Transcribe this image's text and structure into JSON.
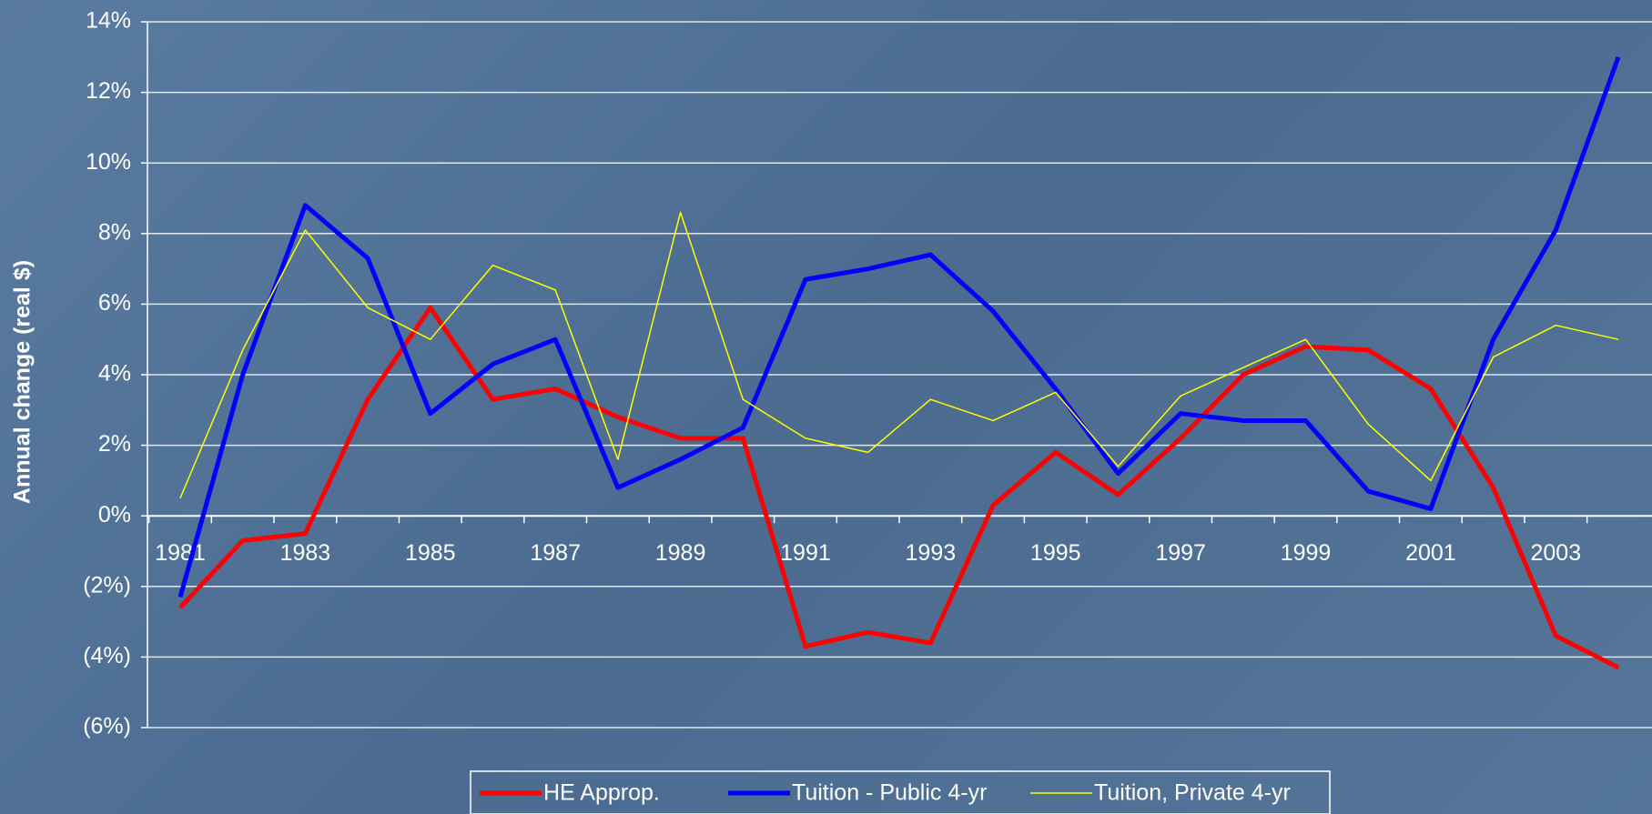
{
  "chart_data": {
    "type": "line",
    "y_label": "Annual change (real $)",
    "categories": [
      "1981",
      null,
      "1983",
      null,
      "1985",
      null,
      "1987",
      null,
      "1989",
      null,
      "1991",
      null,
      "1993",
      null,
      "1995",
      null,
      "1997",
      null,
      "1999",
      null,
      "2001",
      null,
      "2003",
      null
    ],
    "series": [
      {
        "name": "HE Approp.",
        "color": "#ff0000",
        "width": 5,
        "values": [
          -2.6,
          -0.7,
          -0.5,
          3.3,
          5.9,
          3.3,
          3.6,
          2.8,
          2.2,
          2.2,
          -3.7,
          -3.3,
          -3.6,
          0.3,
          1.8,
          0.6,
          2.2,
          4.0,
          4.8,
          4.7,
          3.6,
          0.8,
          -3.4,
          -4.3
        ]
      },
      {
        "name": "Tuition - Public 4-yr",
        "color": "#0000ff",
        "width": 5,
        "values": [
          -2.3,
          4.0,
          8.8,
          7.3,
          2.9,
          4.3,
          5.0,
          0.8,
          1.6,
          2.5,
          6.7,
          7.0,
          7.4,
          5.8,
          3.6,
          1.2,
          2.9,
          2.7,
          2.7,
          0.7,
          0.2,
          5.0,
          8.1,
          13.0
        ]
      },
      {
        "name": "Tuition, Private 4-yr",
        "color": "#ffff00",
        "width": 1.5,
        "values": [
          0.5,
          4.7,
          8.1,
          5.9,
          5.0,
          7.1,
          6.4,
          1.6,
          8.6,
          3.3,
          2.2,
          1.8,
          3.3,
          2.7,
          3.5,
          1.4,
          3.4,
          4.2,
          5.0,
          2.6,
          1.0,
          4.5,
          5.4,
          5.0
        ]
      }
    ],
    "ylim": [
      -6,
      14
    ],
    "yticks": [
      {
        "value": -6,
        "label": "(6%)"
      },
      {
        "value": -4,
        "label": "(4%)"
      },
      {
        "value": -2,
        "label": "(2%)"
      },
      {
        "value": 0,
        "label": "0%"
      },
      {
        "value": 2,
        "label": "2%"
      },
      {
        "value": 4,
        "label": "4%"
      },
      {
        "value": 6,
        "label": "6%"
      },
      {
        "value": 8,
        "label": "8%"
      },
      {
        "value": 10,
        "label": "10%"
      },
      {
        "value": 12,
        "label": "12%"
      },
      {
        "value": 14,
        "label": "14%"
      }
    ],
    "grid": true,
    "legend": "bottom"
  }
}
